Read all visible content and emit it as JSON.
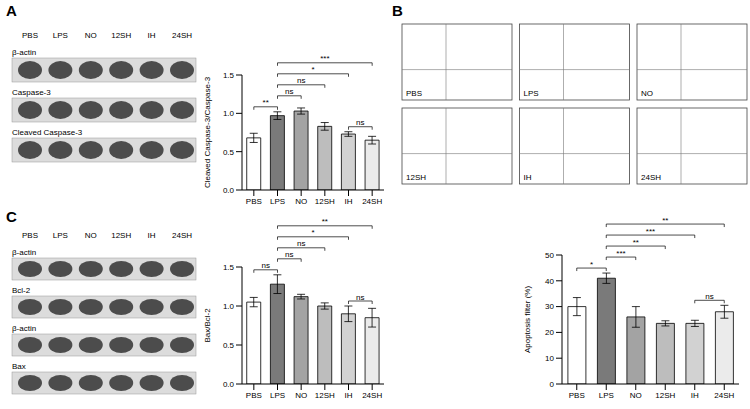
{
  "chart_data": [
    {
      "type": "bar",
      "ylabel": "Cleaved Caspase-3/Caspase-3",
      "categories": [
        "PBS",
        "LPS",
        "NO",
        "12SH",
        "IH",
        "24SH"
      ],
      "values": [
        0.68,
        0.97,
        1.03,
        0.83,
        0.73,
        0.65
      ],
      "errors": [
        0.06,
        0.05,
        0.04,
        0.05,
        0.03,
        0.05
      ],
      "colors": [
        "#ffffff",
        "#7a7a7a",
        "#a3a3a3",
        "#bdbdbd",
        "#d2d2d2",
        "#ebebeb"
      ],
      "ylim": [
        0,
        1.5
      ],
      "yticks": [
        {
          "value": 0,
          "label": "0.0"
        },
        {
          "value": 0.5,
          "label": "0.5"
        },
        {
          "value": 1,
          "label": "1.0"
        },
        {
          "value": 1.5,
          "label": "1.5"
        }
      ],
      "annotations": [
        {
          "from": "PBS",
          "to": "LPS",
          "text": "**"
        },
        {
          "from": "LPS",
          "to": "NO",
          "text": "ns"
        },
        {
          "from": "LPS",
          "to": "12SH",
          "text": "ns"
        },
        {
          "from": "LPS",
          "to": "IH",
          "text": "*"
        },
        {
          "from": "LPS",
          "to": "24SH",
          "text": "***"
        },
        {
          "from": "IH",
          "to": "24SH",
          "text": "ns"
        }
      ]
    },
    {
      "type": "bar",
      "ylabel": "Apoptosis filter (%)",
      "categories": [
        "PBS",
        "LPS",
        "NO",
        "12SH",
        "IH",
        "24SH"
      ],
      "values": [
        30,
        41,
        26,
        23.5,
        23.5,
        28
      ],
      "errors": [
        3.5,
        2,
        4,
        1,
        1.2,
        2.5
      ],
      "colors": [
        "#ffffff",
        "#7a7a7a",
        "#a3a3a3",
        "#bdbdbd",
        "#d2d2d2",
        "#ebebeb"
      ],
      "ylim": [
        0,
        50
      ],
      "yticks": [
        0,
        10,
        20,
        30,
        40,
        50
      ],
      "annotations": [
        {
          "from": "PBS",
          "to": "LPS",
          "text": "*"
        },
        {
          "from": "LPS",
          "to": "NO",
          "text": "***"
        },
        {
          "from": "LPS",
          "to": "12SH",
          "text": "**"
        },
        {
          "from": "LPS",
          "to": "IH",
          "text": "***"
        },
        {
          "from": "LPS",
          "to": "24SH",
          "text": "**"
        },
        {
          "from": "IH",
          "to": "24SH",
          "text": "ns"
        }
      ]
    },
    {
      "type": "bar",
      "ylabel": "Bax/Bcl-2",
      "categories": [
        "PBS",
        "LPS",
        "NO",
        "12SH",
        "IH",
        "24SH"
      ],
      "values": [
        1.05,
        1.28,
        1.12,
        1.0,
        0.9,
        0.85
      ],
      "errors": [
        0.06,
        0.12,
        0.03,
        0.04,
        0.1,
        0.12
      ],
      "colors": [
        "#ffffff",
        "#7a7a7a",
        "#a3a3a3",
        "#bdbdbd",
        "#d2d2d2",
        "#ebebeb"
      ],
      "ylim": [
        0,
        1.5
      ],
      "yticks": [
        {
          "value": 0,
          "label": "0.0"
        },
        {
          "value": 0.5,
          "label": "0.5"
        },
        {
          "value": 1,
          "label": "1.0"
        },
        {
          "value": 1.5,
          "label": "1.5"
        }
      ],
      "annotations": [
        {
          "from": "PBS",
          "to": "LPS",
          "text": "ns"
        },
        {
          "from": "LPS",
          "to": "NO",
          "text": "ns"
        },
        {
          "from": "LPS",
          "to": "12SH",
          "text": "ns"
        },
        {
          "from": "LPS",
          "to": "IH",
          "text": "*"
        },
        {
          "from": "LPS",
          "to": "24SH",
          "text": "**"
        },
        {
          "from": "IH",
          "to": "24SH",
          "text": "ns"
        }
      ]
    }
  ],
  "blots": [
    {
      "panel": "A",
      "lanes": [
        "PBS",
        "LPS",
        "NO",
        "12SH",
        "IH",
        "24SH"
      ],
      "rows": [
        "β-actin",
        "Caspase-3",
        "Cleaved Caspase-3"
      ]
    },
    {
      "panel": "C",
      "lanes": [
        "PBS",
        "LPS",
        "NO",
        "12SH",
        "IH",
        "24SH"
      ],
      "rows": [
        "β-actin",
        "Bcl-2",
        "β-actin",
        "Bax"
      ]
    }
  ],
  "flow": {
    "panel": "B",
    "samples": [
      "PBS",
      "LPS",
      "NO",
      "12SH",
      "IH",
      "24SH"
    ]
  }
}
